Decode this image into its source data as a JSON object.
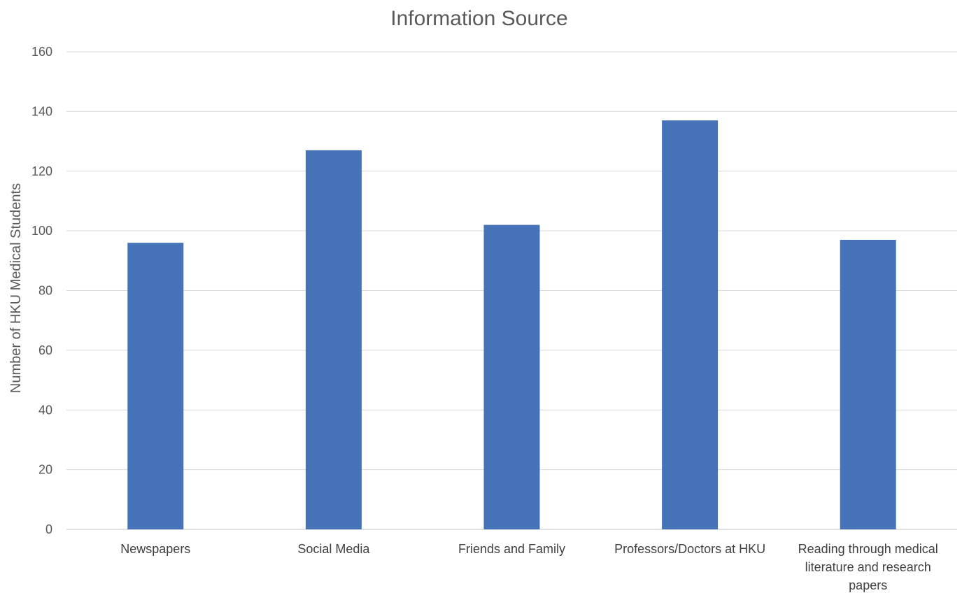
{
  "chart_data": {
    "type": "bar",
    "title": "Information Source",
    "xlabel": "",
    "ylabel": "Number of HKU Medical Students",
    "categories": [
      "Newspapers",
      "Social Media",
      "Friends and Family",
      "Professors/Doctors at HKU",
      "Reading through medical literature and research papers"
    ],
    "category_label_lines": [
      [
        "Newspapers"
      ],
      [
        "Social Media"
      ],
      [
        "Friends and Family"
      ],
      [
        "Professors/Doctors at HKU"
      ],
      [
        "Reading through medical",
        "literature and research",
        "papers"
      ]
    ],
    "series": [
      {
        "values": [
          96,
          127,
          102,
          137,
          97
        ],
        "color": "#4672B8"
      }
    ],
    "ylim": [
      0,
      160
    ],
    "yticks": [
      0,
      20,
      40,
      60,
      80,
      100,
      120,
      140,
      160
    ],
    "grid": true,
    "legend": "none"
  }
}
